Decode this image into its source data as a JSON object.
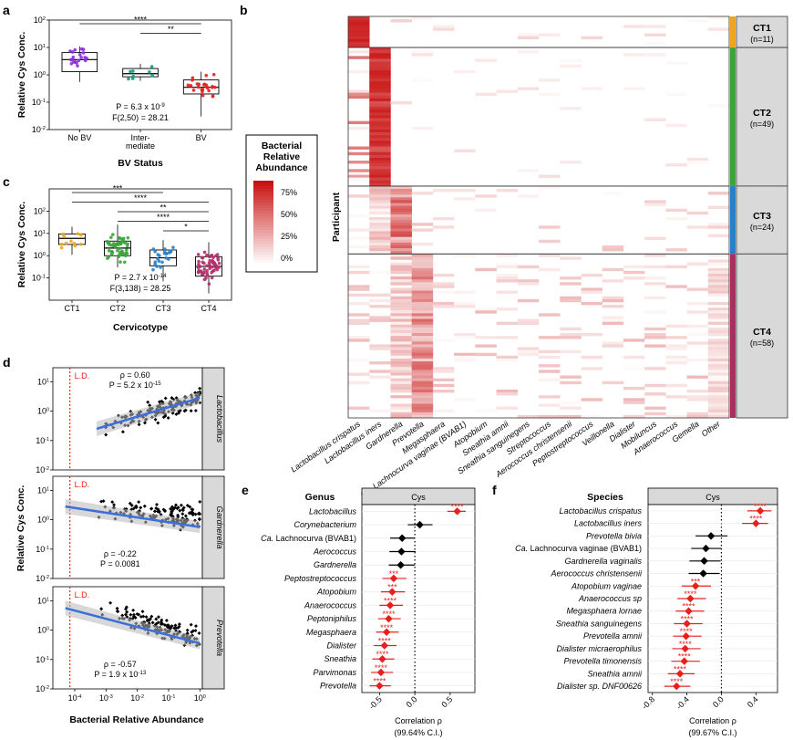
{
  "panel_labels": {
    "a": "a",
    "b": "b",
    "c": "c",
    "d": "d",
    "e": "e",
    "f": "f"
  },
  "chart_data": [
    {
      "id": "a",
      "type": "box",
      "ylabel": "Relative Cys Conc.",
      "xlabel": "BV Status",
      "categories": [
        "No BV",
        "Inter-|mediate",
        "BV"
      ],
      "colors": [
        "#8a2be2",
        "#1a9a7a",
        "#e8201c"
      ],
      "log_y": true,
      "ylim": [
        0.01,
        100
      ],
      "y_ticks": [
        "10^-2",
        "10^-1",
        "10^0",
        "10^1",
        "10^2"
      ],
      "boxes": [
        {
          "q1": 1.3,
          "median": 3.6,
          "q3": 6.5,
          "whisker_low": 0.55,
          "whisker_high": 11
        },
        {
          "q1": 0.85,
          "median": 1.1,
          "q3": 1.7,
          "whisker_low": 0.6,
          "whisker_high": 2.5
        },
        {
          "q1": 0.2,
          "median": 0.35,
          "q3": 0.65,
          "whisker_low": 0.03,
          "whisker_high": 1.3
        }
      ],
      "significance": [
        {
          "from": 0,
          "to": 2,
          "label": "****"
        },
        {
          "from": 1,
          "to": 2,
          "label": "**"
        }
      ],
      "stats": {
        "p": "P = 6.3 x 10^-9",
        "f": "F(2,50) = 28.21"
      }
    },
    {
      "id": "c",
      "type": "box",
      "ylabel": "Relative Cys Conc.",
      "xlabel": "Cervicotype",
      "categories": [
        "CT1",
        "CT2",
        "CT3",
        "CT4"
      ],
      "colors": [
        "#f0a520",
        "#3aa53a",
        "#2880c8",
        "#b0306a"
      ],
      "log_y": true,
      "ylim": [
        0.01,
        1000
      ],
      "y_ticks": [
        "10^-1",
        "10^0",
        "10^1",
        "10^2"
      ],
      "boxes": [
        {
          "q1": 3.2,
          "median": 6.0,
          "q3": 9.5,
          "whisker_low": 1.1,
          "whisker_high": 20
        },
        {
          "q1": 1.0,
          "median": 2.2,
          "q3": 4.5,
          "whisker_low": 0.3,
          "whisker_high": 25
        },
        {
          "q1": 0.35,
          "median": 0.8,
          "q3": 1.8,
          "whisker_low": 0.07,
          "whisker_high": 5
        },
        {
          "q1": 0.12,
          "median": 0.33,
          "q3": 0.9,
          "whisker_low": 0.02,
          "whisker_high": 4
        }
      ],
      "significance": [
        {
          "from": 0,
          "to": 2,
          "label": "***"
        },
        {
          "from": 0,
          "to": 3,
          "label": "****"
        },
        {
          "from": 1,
          "to": 3,
          "label": "**"
        },
        {
          "from": 1,
          "to": 3,
          "label": "****"
        },
        {
          "from": 2,
          "to": 3,
          "label": "*"
        }
      ],
      "stats": {
        "p": "P = 2.7 x 10^-14",
        "f": "F(3,138) = 28.25"
      }
    },
    {
      "id": "b",
      "type": "heatmap",
      "ylabel": "Participant",
      "legend_title": [
        "Bacterial",
        "Relative",
        "Abundance"
      ],
      "legend_ticks": [
        "75%",
        "50%",
        "25%",
        "0%"
      ],
      "columns": [
        "Lactobacillus crispatus",
        "Lactobacillus iners",
        "Gardnerella",
        "Prevotella",
        "Megasphaera",
        "Ca. Lachnocurva vaginae (BVAB1)",
        "Atopobium",
        "Sneathia amnii",
        "Sneathia sanguinegens",
        "Streptococcus",
        "Aerococcus christensenii",
        "Peptostreptococcus",
        "Veillonella",
        "Dialister",
        "Mobiluncus",
        "Anaerococcus",
        "Gemella",
        "Other"
      ],
      "groups": [
        {
          "name": "CT1",
          "n": "(n=11)",
          "color": "#f0a520"
        },
        {
          "name": "CT2",
          "n": "(n=49)",
          "color": "#3aa53a"
        },
        {
          "name": "CT3",
          "n": "(n=24)",
          "color": "#2880c8"
        },
        {
          "name": "CT4",
          "n": "(n=58)",
          "color": "#a8305e"
        }
      ]
    },
    {
      "id": "d",
      "type": "scatter",
      "ylabel": "Relative Cys Conc.",
      "xlabel": "Bacterial Relative Abundance",
      "ld_label": "L.D.",
      "x_ticks": [
        "10^-4",
        "10^-3",
        "10^-2",
        "10^-1",
        "10^0"
      ],
      "y_ticks": [
        "10^-2",
        "10^-1",
        "10^0",
        "10^1"
      ],
      "log_x": true,
      "log_y": true,
      "xlim": [
        2e-05,
        1.2
      ],
      "ylim": [
        0.01,
        30
      ],
      "panels": [
        {
          "name": "Lactobacillus",
          "rho": "ρ = 0.60",
          "p": "P = 5.2 x 10^-15",
          "trend": "up"
        },
        {
          "name": "Gardnerella",
          "rho": "ρ = -0.22",
          "p": "P = 0.0081",
          "trend": "flat"
        },
        {
          "name": "Prevotella",
          "rho": "ρ = -0.57",
          "p": "P = 1.9 x 10^-13",
          "trend": "down"
        }
      ]
    },
    {
      "id": "e",
      "type": "forest",
      "title": "Genus",
      "facet": "Cys",
      "xlabel": "Correlation ρ",
      "xlabel2": "(99.64% C.I.)",
      "xlim": [
        -0.75,
        0.85
      ],
      "x_ticks": [
        "-0.5",
        "0.0",
        "0.5"
      ],
      "x_tick_values": [
        -0.5,
        0,
        0.5
      ],
      "rows": [
        {
          "label": "Lactobacillus",
          "prefix": "",
          "rho": 0.6,
          "lo": 0.46,
          "hi": 0.72,
          "sig": "****",
          "color": "red"
        },
        {
          "label": "Corynebacterium",
          "prefix": "",
          "rho": 0.07,
          "lo": -0.1,
          "hi": 0.25,
          "sig": "",
          "color": "black"
        },
        {
          "label": "Lachnocurva (BVAB1)",
          "prefix": "Ca.",
          "rho": -0.18,
          "lo": -0.35,
          "hi": 0.0,
          "sig": "",
          "color": "black"
        },
        {
          "label": "Aerococcus",
          "prefix": "",
          "rho": -0.19,
          "lo": -0.36,
          "hi": 0.01,
          "sig": "",
          "color": "black"
        },
        {
          "label": "Gardnerella",
          "prefix": "",
          "rho": -0.2,
          "lo": -0.37,
          "hi": 0.0,
          "sig": "",
          "color": "black"
        },
        {
          "label": "Peptostreptococcus",
          "prefix": "",
          "rho": -0.3,
          "lo": -0.46,
          "hi": -0.12,
          "sig": "***",
          "color": "red"
        },
        {
          "label": "Atopobium",
          "prefix": "",
          "rho": -0.32,
          "lo": -0.48,
          "hi": -0.14,
          "sig": "***",
          "color": "red"
        },
        {
          "label": "Anaerococcus",
          "prefix": "",
          "rho": -0.35,
          "lo": -0.5,
          "hi": -0.17,
          "sig": "****",
          "color": "red"
        },
        {
          "label": "Peptoniphilus",
          "prefix": "",
          "rho": -0.37,
          "lo": -0.52,
          "hi": -0.2,
          "sig": "****",
          "color": "red"
        },
        {
          "label": "Megasphaera",
          "prefix": "",
          "rho": -0.4,
          "lo": -0.55,
          "hi": -0.23,
          "sig": "****",
          "color": "red"
        },
        {
          "label": "Dialister",
          "prefix": "",
          "rho": -0.43,
          "lo": -0.58,
          "hi": -0.26,
          "sig": "****",
          "color": "red"
        },
        {
          "label": "Sneathia",
          "prefix": "",
          "rho": -0.46,
          "lo": -0.6,
          "hi": -0.29,
          "sig": "****",
          "color": "red"
        },
        {
          "label": "Parvimonas",
          "prefix": "",
          "rho": -0.48,
          "lo": -0.62,
          "hi": -0.31,
          "sig": "****",
          "color": "red"
        },
        {
          "label": "Prevotella",
          "prefix": "",
          "rho": -0.5,
          "lo": -0.64,
          "hi": -0.34,
          "sig": "****",
          "color": "red"
        }
      ]
    },
    {
      "id": "f",
      "type": "forest",
      "title": "Species",
      "facet": "Cys",
      "xlabel": "Correlation ρ",
      "xlabel2": "(99.67% C.I.)",
      "xlim": [
        -0.85,
        0.65
      ],
      "x_ticks": [
        "-0.8",
        "-0.4",
        "0.0",
        "0.4"
      ],
      "x_tick_values": [
        -0.8,
        -0.4,
        0,
        0.4
      ],
      "rows": [
        {
          "label": "Lactobacillus crispatus",
          "prefix": "",
          "rho": 0.45,
          "lo": 0.3,
          "hi": 0.58,
          "sig": "****",
          "color": "red"
        },
        {
          "label": "Lactobacillus iners",
          "prefix": "",
          "rho": 0.4,
          "lo": 0.24,
          "hi": 0.54,
          "sig": "****",
          "color": "red"
        },
        {
          "label": "Prevotella bivia",
          "prefix": "",
          "rho": -0.12,
          "lo": -0.3,
          "hi": 0.07,
          "sig": "",
          "color": "black"
        },
        {
          "label": "Lachnocurva vaginae (BVAB1)",
          "prefix": "Ca.",
          "rho": -0.18,
          "lo": -0.35,
          "hi": 0.0,
          "sig": "",
          "color": "black"
        },
        {
          "label": "Gardnerella vaginalis",
          "prefix": "",
          "rho": -0.2,
          "lo": -0.37,
          "hi": -0.01,
          "sig": "",
          "color": "black"
        },
        {
          "label": "Aerococcus christensenii",
          "prefix": "",
          "rho": -0.21,
          "lo": -0.38,
          "hi": -0.02,
          "sig": "",
          "color": "black"
        },
        {
          "label": "Atopobium vaginae",
          "prefix": "",
          "rho": -0.3,
          "lo": -0.46,
          "hi": -0.12,
          "sig": "***",
          "color": "red"
        },
        {
          "label": "Anaerococcus sp",
          "prefix": "",
          "rho": -0.36,
          "lo": -0.51,
          "hi": -0.18,
          "sig": "****",
          "color": "red"
        },
        {
          "label": "Megasphaera lornae",
          "prefix": "",
          "rho": -0.38,
          "lo": -0.53,
          "hi": -0.2,
          "sig": "****",
          "color": "red"
        },
        {
          "label": "Sneathia sanguinegens",
          "prefix": "",
          "rho": -0.4,
          "lo": -0.55,
          "hi": -0.22,
          "sig": "****",
          "color": "red"
        },
        {
          "label": "Prevotella amnii",
          "prefix": "",
          "rho": -0.41,
          "lo": -0.56,
          "hi": -0.23,
          "sig": "****",
          "color": "red"
        },
        {
          "label": "Dialister micraerophilus",
          "prefix": "",
          "rho": -0.42,
          "lo": -0.57,
          "hi": -0.24,
          "sig": "****",
          "color": "red"
        },
        {
          "label": "Prevotella timonensis",
          "prefix": "",
          "rho": -0.43,
          "lo": -0.58,
          "hi": -0.25,
          "sig": "****",
          "color": "red"
        },
        {
          "label": "Sneathia amnii",
          "prefix": "",
          "rho": -0.48,
          "lo": -0.62,
          "hi": -0.31,
          "sig": "****",
          "color": "red"
        },
        {
          "label": "DNF00626",
          "prefix": "Dialister sp.",
          "rho": -0.52,
          "lo": -0.66,
          "hi": -0.36,
          "sig": "****",
          "color": "red"
        }
      ]
    }
  ]
}
